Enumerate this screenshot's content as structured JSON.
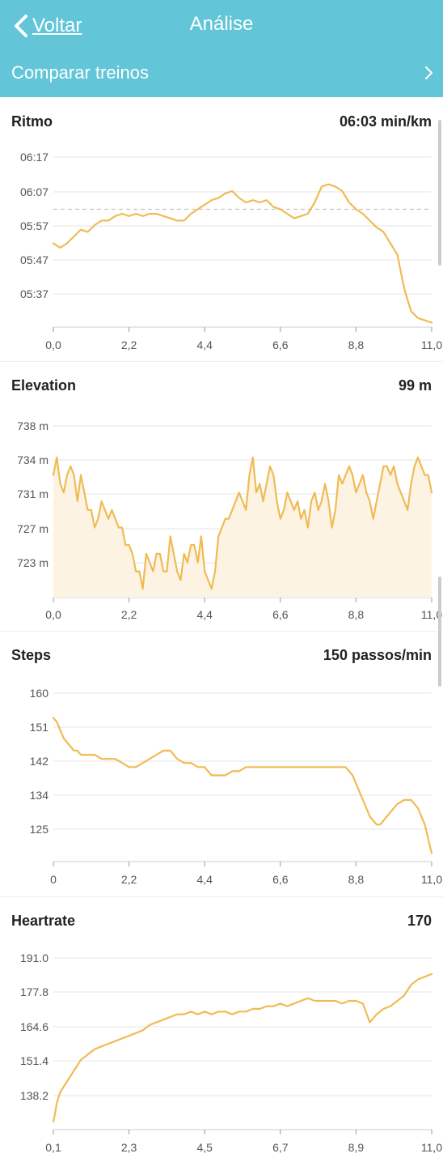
{
  "header": {
    "back_label": "Voltar",
    "title": "Análise",
    "compare_label": "Comparar treinos",
    "background": "#62c6d8"
  },
  "accent_color": "#f0bb55",
  "sections": [
    {
      "title": "Ritmo",
      "value": "06:03 min/km",
      "chart_data": {
        "type": "line",
        "x_tick_labels": [
          "0,0",
          "2,2",
          "4,4",
          "6,6",
          "8,8",
          "11,0"
        ],
        "y_tick_labels": [
          "06:17",
          "06:07",
          "05:57",
          "05:47",
          "05:37"
        ],
        "x": [
          0,
          0.2,
          0.4,
          0.6,
          0.8,
          1.0,
          1.2,
          1.4,
          1.6,
          1.8,
          2.0,
          2.2,
          2.4,
          2.6,
          2.8,
          3.0,
          3.2,
          3.4,
          3.6,
          3.8,
          4.0,
          4.2,
          4.4,
          4.6,
          4.8,
          5.0,
          5.2,
          5.4,
          5.6,
          5.8,
          6.0,
          6.2,
          6.4,
          6.6,
          6.8,
          7.0,
          7.2,
          7.4,
          7.6,
          7.8,
          8.0,
          8.2,
          8.4,
          8.6,
          8.8,
          9.0,
          9.2,
          9.4,
          9.6,
          9.8,
          10.0,
          10.2,
          10.4,
          10.6,
          10.8,
          11.0
        ],
        "y": [
          5.9,
          5.88,
          5.9,
          5.93,
          5.96,
          5.95,
          5.98,
          6.0,
          6.0,
          6.02,
          6.03,
          6.02,
          6.03,
          6.02,
          6.03,
          6.03,
          6.02,
          6.01,
          6.0,
          6.0,
          6.03,
          6.05,
          6.07,
          6.09,
          6.1,
          6.12,
          6.13,
          6.1,
          6.08,
          6.09,
          6.08,
          6.09,
          6.06,
          6.05,
          6.03,
          6.01,
          6.02,
          6.03,
          6.08,
          6.15,
          6.16,
          6.15,
          6.13,
          6.08,
          6.05,
          6.03,
          6.0,
          5.97,
          5.95,
          5.9,
          5.85,
          5.7,
          5.6,
          5.57,
          5.56,
          5.55
        ],
        "reference_line": 6.05,
        "xlim": [
          0,
          11
        ],
        "ylim": [
          5.53,
          6.28
        ],
        "grid": true,
        "fill": false
      }
    },
    {
      "title": "Elevation",
      "value": "99 m",
      "chart_data": {
        "type": "area",
        "x_tick_labels": [
          "0,0",
          "2,2",
          "4,4",
          "6,6",
          "8,8",
          "11,0"
        ],
        "y_tick_labels": [
          "738 m",
          "734 m",
          "731 m",
          "727 m",
          "723 m"
        ],
        "x": [
          0,
          0.1,
          0.2,
          0.3,
          0.4,
          0.5,
          0.6,
          0.7,
          0.8,
          0.9,
          1.0,
          1.1,
          1.2,
          1.3,
          1.4,
          1.5,
          1.6,
          1.7,
          1.8,
          1.9,
          2.0,
          2.1,
          2.2,
          2.3,
          2.4,
          2.5,
          2.6,
          2.7,
          2.8,
          2.9,
          3.0,
          3.1,
          3.2,
          3.3,
          3.4,
          3.5,
          3.6,
          3.7,
          3.8,
          3.9,
          4.0,
          4.1,
          4.2,
          4.3,
          4.4,
          4.5,
          4.6,
          4.7,
          4.8,
          4.9,
          5.0,
          5.1,
          5.2,
          5.3,
          5.4,
          5.5,
          5.6,
          5.7,
          5.8,
          5.9,
          6.0,
          6.1,
          6.2,
          6.3,
          6.4,
          6.5,
          6.6,
          6.7,
          6.8,
          6.9,
          7.0,
          7.1,
          7.2,
          7.3,
          7.4,
          7.5,
          7.6,
          7.7,
          7.8,
          7.9,
          8.0,
          8.1,
          8.2,
          8.3,
          8.4,
          8.5,
          8.6,
          8.7,
          8.8,
          8.9,
          9.0,
          9.1,
          9.2,
          9.3,
          9.4,
          9.5,
          9.6,
          9.7,
          9.8,
          9.9,
          10.0,
          10.1,
          10.2,
          10.3,
          10.4,
          10.5,
          10.6,
          10.7,
          10.8,
          10.9,
          11.0
        ],
        "y": [
          734,
          736,
          733,
          732,
          734,
          735,
          734,
          731,
          734,
          732,
          730,
          730,
          728,
          729,
          731,
          730,
          729,
          730,
          729,
          728,
          728,
          726,
          726,
          725,
          723,
          723,
          721,
          725,
          724,
          723,
          725,
          725,
          723,
          723,
          727,
          725,
          723,
          722,
          725,
          724,
          726,
          726,
          724,
          727,
          723,
          722,
          721,
          723,
          727,
          728,
          729,
          729,
          730,
          731,
          732,
          731,
          730,
          734,
          736,
          732,
          733,
          731,
          733,
          735,
          734,
          731,
          729,
          730,
          732,
          731,
          730,
          731,
          729,
          730,
          728,
          731,
          732,
          730,
          731,
          733,
          731,
          728,
          730,
          734,
          733,
          734,
          735,
          734,
          732,
          733,
          734,
          732,
          731,
          729,
          731,
          733,
          735,
          735,
          734,
          735,
          733,
          732,
          731,
          730,
          733,
          735,
          736,
          735,
          734,
          734,
          732
        ],
        "xlim": [
          0,
          11
        ],
        "ylim": [
          720,
          739.6
        ],
        "grid": true,
        "fill": true,
        "fill_color": "#fdf3e2"
      }
    },
    {
      "title": "Steps",
      "value": "150 passos/min",
      "chart_data": {
        "type": "line",
        "x_tick_labels": [
          "0",
          "2,2",
          "4,4",
          "6,6",
          "8,8",
          "11,0"
        ],
        "y_tick_labels": [
          "160",
          "151",
          "142",
          "134",
          "125"
        ],
        "x": [
          0,
          0.1,
          0.2,
          0.3,
          0.4,
          0.5,
          0.6,
          0.7,
          0.8,
          0.9,
          1.0,
          1.2,
          1.4,
          1.6,
          1.8,
          2.0,
          2.2,
          2.4,
          2.6,
          2.8,
          3.0,
          3.2,
          3.4,
          3.6,
          3.8,
          4.0,
          4.2,
          4.4,
          4.6,
          4.8,
          5.0,
          5.2,
          5.4,
          5.6,
          5.8,
          6.0,
          6.2,
          6.4,
          6.6,
          6.8,
          7.0,
          7.2,
          7.4,
          7.6,
          7.8,
          8.0,
          8.2,
          8.4,
          8.5,
          8.6,
          8.7,
          8.8,
          8.9,
          9.0,
          9.1,
          9.2,
          9.3,
          9.4,
          9.5,
          9.6,
          9.7,
          9.8,
          9.9,
          10.0,
          10.2,
          10.4,
          10.6,
          10.8,
          11.0
        ],
        "y": [
          156,
          155,
          153,
          151,
          150,
          149,
          148,
          148,
          147,
          147,
          147,
          147,
          146,
          146,
          146,
          145,
          144,
          144,
          145,
          146,
          147,
          148,
          148,
          146,
          145,
          145,
          144,
          144,
          142,
          142,
          142,
          143,
          143,
          144,
          144,
          144,
          144,
          144,
          144,
          144,
          144,
          144,
          144,
          144,
          144,
          144,
          144,
          144,
          144,
          143,
          142,
          140,
          138,
          136,
          134,
          132,
          131,
          130,
          130,
          131,
          132,
          133,
          134,
          135,
          136,
          136,
          134,
          130,
          123
        ],
        "xlim": [
          0,
          11
        ],
        "ylim": [
          121,
          162
        ],
        "grid": true,
        "fill": false
      }
    },
    {
      "title": "Heartrate",
      "value": "170",
      "chart_data": {
        "type": "line",
        "x_tick_labels": [
          "0,1",
          "2,3",
          "4,5",
          "6,7",
          "8,9",
          "11,0"
        ],
        "y_tick_labels": [
          "191.0",
          "177.8",
          "164.6",
          "151.4",
          "138.2"
        ],
        "x": [
          0,
          0.05,
          0.1,
          0.15,
          0.2,
          0.3,
          0.4,
          0.5,
          0.6,
          0.7,
          0.8,
          0.9,
          1.0,
          1.2,
          1.4,
          1.6,
          1.8,
          2.0,
          2.2,
          2.4,
          2.6,
          2.8,
          3.0,
          3.2,
          3.4,
          3.6,
          3.8,
          4.0,
          4.2,
          4.4,
          4.6,
          4.8,
          5.0,
          5.2,
          5.4,
          5.6,
          5.8,
          6.0,
          6.2,
          6.4,
          6.6,
          6.8,
          7.0,
          7.2,
          7.4,
          7.6,
          7.8,
          8.0,
          8.2,
          8.4,
          8.6,
          8.8,
          9.0,
          9.2,
          9.4,
          9.6,
          9.8,
          10.0,
          10.2,
          10.4,
          10.6,
          10.8,
          11.0
        ],
        "y": [
          132,
          135,
          139,
          141,
          143,
          145,
          147,
          149,
          151,
          153,
          155,
          156,
          157,
          159,
          160,
          161,
          162,
          163,
          164,
          165,
          166,
          168,
          169,
          170,
          171,
          172,
          172,
          173,
          172,
          173,
          172,
          173,
          173,
          172,
          173,
          173,
          174,
          174,
          175,
          175,
          176,
          175,
          176,
          177,
          178,
          177,
          177,
          177,
          177,
          176,
          177,
          177,
          176,
          169,
          172,
          174,
          175,
          177,
          179,
          183,
          185,
          186,
          187
        ],
        "xlim": [
          0,
          11
        ],
        "ylim": [
          129,
          193
        ],
        "grid": true,
        "fill": false
      }
    }
  ]
}
